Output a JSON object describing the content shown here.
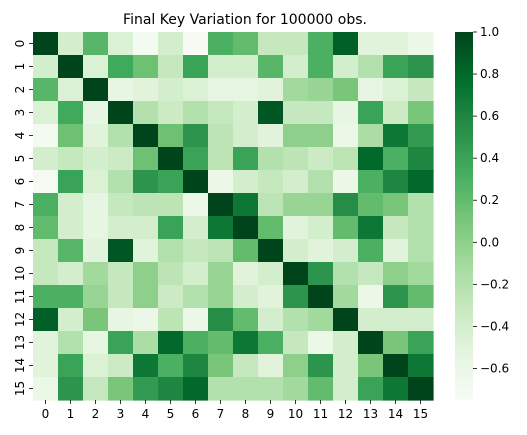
{
  "chart_data": {
    "type": "heatmap",
    "title": "Final Key Variation for 100000 obs.",
    "xlabel": "",
    "ylabel": "",
    "x_categories": [
      "0",
      "1",
      "2",
      "3",
      "4",
      "5",
      "6",
      "7",
      "8",
      "9",
      "10",
      "11",
      "12",
      "13",
      "14",
      "15"
    ],
    "y_categories": [
      "0",
      "1",
      "2",
      "3",
      "4",
      "5",
      "6",
      "7",
      "8",
      "9",
      "10",
      "11",
      "12",
      "13",
      "14",
      "15"
    ],
    "colormap": "Greens",
    "vmin": -0.75,
    "vmax": 1.0,
    "colorbar_ticks": [
      1.0,
      0.8,
      0.6,
      0.4,
      0.2,
      0.0,
      -0.2,
      -0.4,
      -0.6
    ],
    "colorbar_tick_labels": [
      "1.0",
      "0.8",
      "0.6",
      "0.4",
      "0.2",
      "0.0",
      "−0.2",
      "−0.4",
      "−0.6"
    ],
    "values": [
      [
        1.0,
        -0.4,
        0.25,
        -0.45,
        -0.7,
        -0.4,
        -0.72,
        0.3,
        0.2,
        -0.3,
        -0.3,
        0.3,
        0.85,
        -0.5,
        -0.5,
        -0.6
      ],
      [
        -0.4,
        1.0,
        -0.45,
        0.35,
        0.15,
        -0.3,
        0.4,
        -0.4,
        -0.4,
        0.25,
        -0.4,
        0.3,
        -0.4,
        -0.2,
        0.4,
        0.5
      ],
      [
        0.25,
        -0.45,
        1.0,
        -0.55,
        -0.5,
        -0.4,
        -0.45,
        -0.55,
        -0.55,
        -0.5,
        -0.1,
        -0.05,
        0.1,
        -0.55,
        -0.45,
        -0.3
      ],
      [
        -0.45,
        0.35,
        -0.55,
        1.0,
        -0.2,
        -0.35,
        -0.2,
        -0.3,
        -0.4,
        0.9,
        -0.3,
        -0.3,
        -0.55,
        0.4,
        -0.35,
        0.1
      ],
      [
        -0.7,
        0.15,
        -0.5,
        -0.2,
        1.0,
        0.15,
        0.5,
        -0.25,
        -0.4,
        -0.5,
        0.0,
        0.0,
        -0.6,
        -0.15,
        0.7,
        0.45
      ],
      [
        -0.4,
        -0.3,
        -0.4,
        -0.35,
        0.15,
        1.0,
        0.4,
        -0.25,
        0.4,
        -0.2,
        -0.25,
        -0.35,
        -0.25,
        0.8,
        0.3,
        0.6
      ],
      [
        -0.72,
        0.4,
        -0.45,
        -0.2,
        0.5,
        0.4,
        1.0,
        -0.6,
        -0.4,
        -0.3,
        -0.4,
        -0.2,
        -0.6,
        0.3,
        0.6,
        0.8
      ],
      [
        0.3,
        -0.4,
        -0.55,
        -0.3,
        -0.25,
        -0.25,
        -0.6,
        1.0,
        0.7,
        -0.25,
        -0.05,
        -0.05,
        0.55,
        0.2,
        0.1,
        -0.2
      ],
      [
        0.2,
        -0.4,
        -0.55,
        -0.4,
        -0.4,
        0.4,
        -0.4,
        0.7,
        1.0,
        0.2,
        -0.5,
        -0.4,
        0.2,
        0.7,
        -0.3,
        -0.2
      ],
      [
        -0.3,
        0.25,
        -0.5,
        0.9,
        -0.5,
        -0.2,
        -0.3,
        -0.25,
        0.2,
        1.0,
        -0.4,
        -0.5,
        -0.4,
        0.3,
        -0.5,
        -0.2
      ],
      [
        -0.3,
        -0.4,
        -0.1,
        -0.3,
        0.0,
        -0.25,
        -0.4,
        -0.05,
        -0.5,
        -0.4,
        1.0,
        0.5,
        -0.2,
        -0.3,
        0.0,
        -0.1
      ],
      [
        0.3,
        0.3,
        -0.05,
        -0.3,
        0.0,
        -0.35,
        -0.2,
        -0.05,
        -0.4,
        -0.5,
        0.5,
        1.0,
        -0.1,
        -0.6,
        0.5,
        0.2
      ],
      [
        0.85,
        -0.4,
        0.1,
        -0.55,
        -0.6,
        -0.25,
        -0.6,
        0.55,
        0.2,
        -0.4,
        -0.2,
        -0.1,
        1.0,
        -0.4,
        -0.4,
        -0.4
      ],
      [
        -0.5,
        -0.2,
        -0.55,
        0.4,
        -0.15,
        0.8,
        0.3,
        0.2,
        0.7,
        0.3,
        -0.3,
        -0.6,
        -0.4,
        1.0,
        0.1,
        0.4
      ],
      [
        -0.5,
        0.4,
        -0.45,
        -0.35,
        0.7,
        0.3,
        0.6,
        0.1,
        -0.3,
        -0.5,
        0.0,
        0.5,
        -0.4,
        0.1,
        1.0,
        0.7
      ],
      [
        -0.6,
        0.5,
        -0.3,
        0.1,
        0.45,
        0.6,
        0.8,
        -0.2,
        -0.2,
        -0.2,
        -0.1,
        0.2,
        -0.4,
        0.4,
        0.7,
        1.0
      ]
    ]
  }
}
